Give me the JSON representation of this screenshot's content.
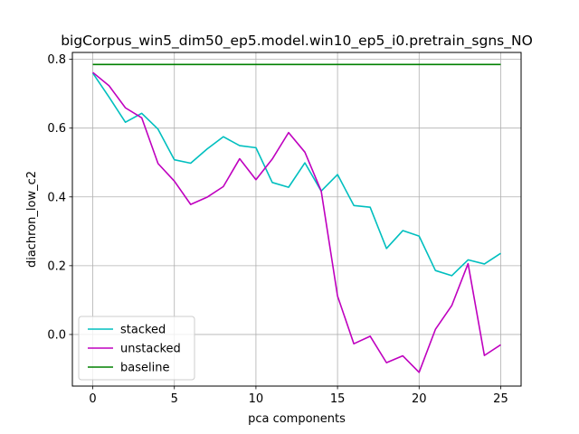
{
  "chart_data": {
    "type": "line",
    "title": "bigCorpus_win5_dim50_ep5.model.win10_ep5_i0.pretrain_sgns_NO",
    "xlabel": "pca components",
    "ylabel": "diachron_low_c2",
    "xlim": [
      -1.25,
      26.25
    ],
    "ylim": [
      -0.15,
      0.82
    ],
    "xticks": [
      0,
      5,
      10,
      15,
      20,
      25
    ],
    "yticks": [
      0.0,
      0.2,
      0.4,
      0.6,
      0.8
    ],
    "ytick_labels": [
      "0.0",
      "0.2",
      "0.4",
      "0.6",
      "0.8"
    ],
    "grid": true,
    "legend_position": "lower-left",
    "x": [
      0,
      1,
      2,
      3,
      4,
      5,
      6,
      7,
      8,
      9,
      10,
      11,
      12,
      13,
      14,
      15,
      16,
      17,
      18,
      19,
      20,
      21,
      22,
      23,
      24,
      25
    ],
    "series": [
      {
        "name": "stacked",
        "color": "#00bfbf",
        "values": [
          0.76,
          0.69,
          0.617,
          0.643,
          0.597,
          0.508,
          0.498,
          0.539,
          0.575,
          0.549,
          0.543,
          0.442,
          0.428,
          0.499,
          0.417,
          0.465,
          0.375,
          0.37,
          0.25,
          0.302,
          0.286,
          0.186,
          0.171,
          0.217,
          0.205,
          0.236
        ]
      },
      {
        "name": "unstacked",
        "color": "#bf00bf",
        "values": [
          0.762,
          0.723,
          0.659,
          0.63,
          0.497,
          0.446,
          0.378,
          0.399,
          0.43,
          0.511,
          0.45,
          0.51,
          0.587,
          0.53,
          0.417,
          0.112,
          -0.027,
          -0.005,
          -0.082,
          -0.062,
          -0.11,
          0.015,
          0.084,
          0.206,
          -0.061,
          -0.03
        ]
      },
      {
        "name": "baseline",
        "color": "#008000",
        "values": [
          0.785,
          0.785,
          0.785,
          0.785,
          0.785,
          0.785,
          0.785,
          0.785,
          0.785,
          0.785,
          0.785,
          0.785,
          0.785,
          0.785,
          0.785,
          0.785,
          0.785,
          0.785,
          0.785,
          0.785,
          0.785,
          0.785,
          0.785,
          0.785,
          0.785,
          0.785
        ]
      }
    ]
  }
}
